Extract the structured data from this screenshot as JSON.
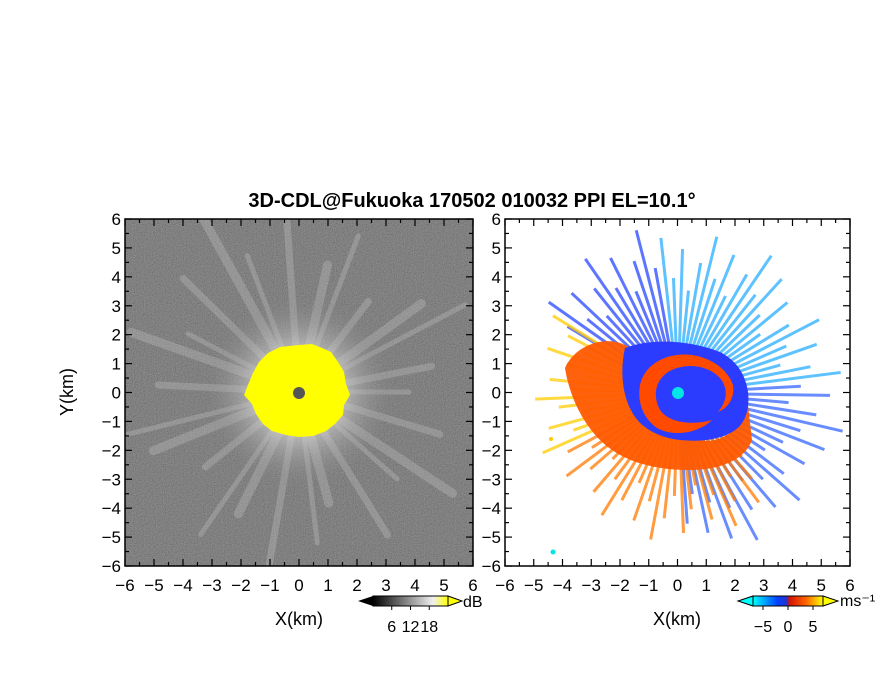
{
  "chart_data": [
    {
      "type": "heatmap",
      "title": "3D-CDL@Fukuoka 170502 010032 PPI EL=10.1°",
      "xlabel": "X(km)",
      "ylabel": "Y(km)",
      "xlim": [
        -6,
        6
      ],
      "ylim": [
        -6,
        6
      ],
      "x_ticks": [
        "−6",
        "−5",
        "−4",
        "−3",
        "−2",
        "−1",
        "0",
        "1",
        "2",
        "3",
        "4",
        "5",
        "6"
      ],
      "y_ticks": [
        "6",
        "5",
        "4",
        "3",
        "2",
        "1",
        "0",
        "−1",
        "−2",
        "−3",
        "−4",
        "−5",
        "−6"
      ],
      "colorbar": {
        "unit": "dB",
        "ticks": [
          "6",
          "12",
          "18"
        ],
        "range": [
          0,
          24
        ],
        "colors": [
          "#000000",
          "#ffffff",
          "#ffff00"
        ]
      },
      "core": {
        "radius_km": 1.6,
        "color": "#ffff00"
      },
      "center_marker_color": "#555555",
      "background_color": "#3a3a3a"
    },
    {
      "type": "heatmap",
      "xlabel": "X(km)",
      "xlim": [
        -6,
        6
      ],
      "ylim": [
        -6,
        6
      ],
      "x_ticks": [
        "−6",
        "−5",
        "−4",
        "−3",
        "−2",
        "−1",
        "0",
        "1",
        "2",
        "3",
        "4",
        "5",
        "6"
      ],
      "y_ticks": [
        "6",
        "5",
        "4",
        "3",
        "2",
        "1",
        "0",
        "−1",
        "−2",
        "−3",
        "−4",
        "−5",
        "−6"
      ],
      "colorbar": {
        "unit": "ms⁻¹",
        "ticks": [
          "−5",
          "0",
          "5"
        ],
        "range": [
          -7,
          7
        ],
        "colors": [
          "#00ffff",
          "#0040ff",
          "#ff3000",
          "#ffff00"
        ]
      },
      "center_marker_color": "#00e5e5",
      "background_color": "#ffffff"
    }
  ]
}
